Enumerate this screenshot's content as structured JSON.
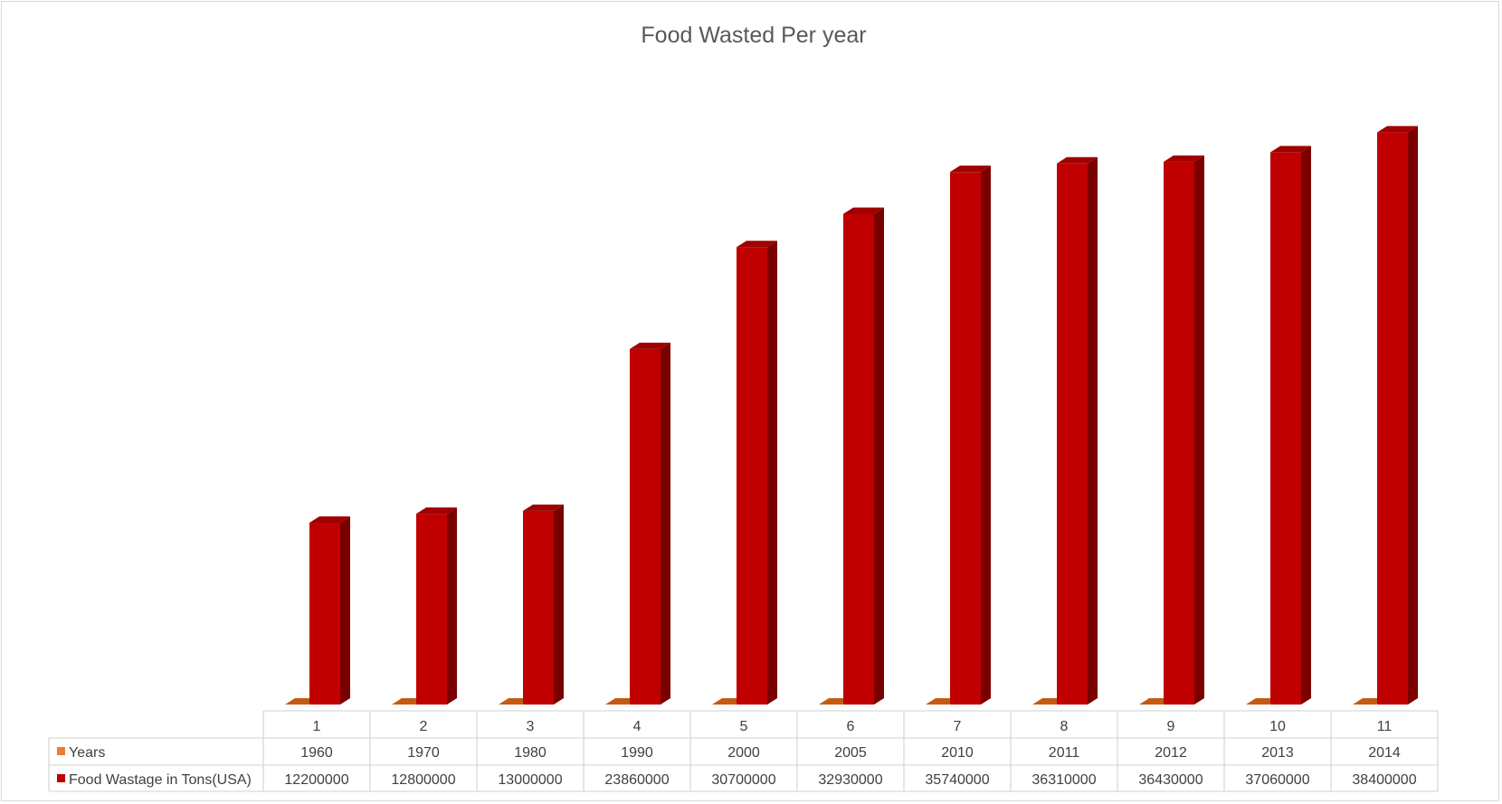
{
  "chart_data": {
    "type": "bar",
    "title": "Food Wasted Per year",
    "categories": [
      "1",
      "2",
      "3",
      "4",
      "5",
      "6",
      "7",
      "8",
      "9",
      "10",
      "11"
    ],
    "series": [
      {
        "name": "Years",
        "color": "#ed7d31",
        "values": [
          1960,
          1970,
          1980,
          1990,
          2000,
          2005,
          2010,
          2011,
          2012,
          2013,
          2014
        ]
      },
      {
        "name": "Food Wastage in Tons(USA)",
        "color": "#c00000",
        "values": [
          12200000,
          12800000,
          13000000,
          23860000,
          30700000,
          32930000,
          35740000,
          36310000,
          36430000,
          37060000,
          38400000
        ]
      }
    ],
    "table_labels": {
      "years": [
        "1960",
        "1970",
        "1980",
        "1990",
        "2000",
        "2005",
        "2010",
        "2011",
        "2012",
        "2013",
        "2014"
      ],
      "wastage": [
        "12200000",
        "12800000",
        "13000000",
        "23860000",
        "30700000",
        "32930000",
        "35740000",
        "36310000",
        "36430000",
        "37060000",
        "38400000"
      ]
    },
    "style": "3d-clustered-column-with-data-table",
    "grid": false,
    "legend": "data-table-left"
  }
}
